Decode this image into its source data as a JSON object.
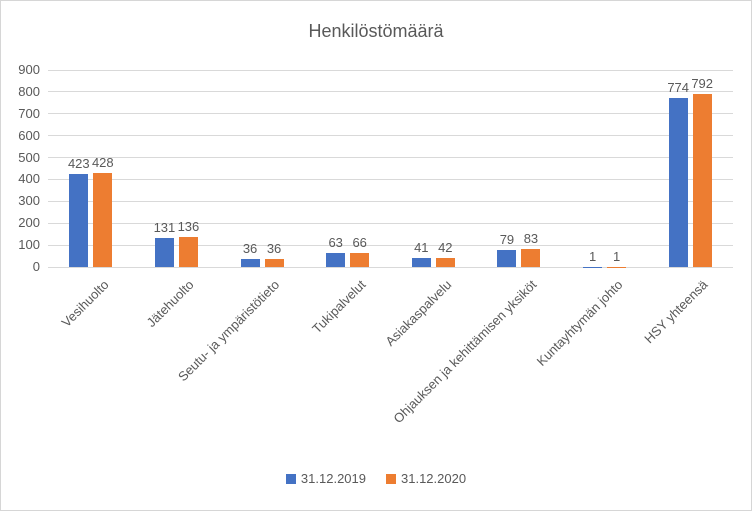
{
  "chart_data": {
    "type": "bar",
    "title": "Henkilöstömäärä",
    "categories": [
      "Vesihuolto",
      "Jätehuolto",
      "Seutu- ja ympäristötieto",
      "Tukipalvelut",
      "Asiakaspalvelu",
      "Ohjauksen ja kehittämisen yksiköt",
      "Kuntayhtymän johto",
      "HSY yhteensä"
    ],
    "series": [
      {
        "name": "31.12.2019",
        "color": "#4472c4",
        "values": [
          423,
          131,
          36,
          63,
          41,
          79,
          1,
          774
        ]
      },
      {
        "name": "31.12.2020",
        "color": "#ed7d31",
        "values": [
          428,
          136,
          36,
          66,
          42,
          83,
          1,
          792
        ]
      }
    ],
    "xlabel": "",
    "ylabel": "",
    "ylim": [
      0,
      900
    ],
    "ytick_step": 100,
    "ytick_labels": [
      "0",
      "100",
      "200",
      "300",
      "400",
      "500",
      "600",
      "700",
      "800",
      "900"
    ],
    "grid": true,
    "data_labels": true,
    "legend_position": "bottom"
  },
  "styles": {
    "text_color": "#595959",
    "gridline_color": "#d9d9d9",
    "frame_border_color": "#d6d6d6",
    "background_color": "#ffffff"
  }
}
